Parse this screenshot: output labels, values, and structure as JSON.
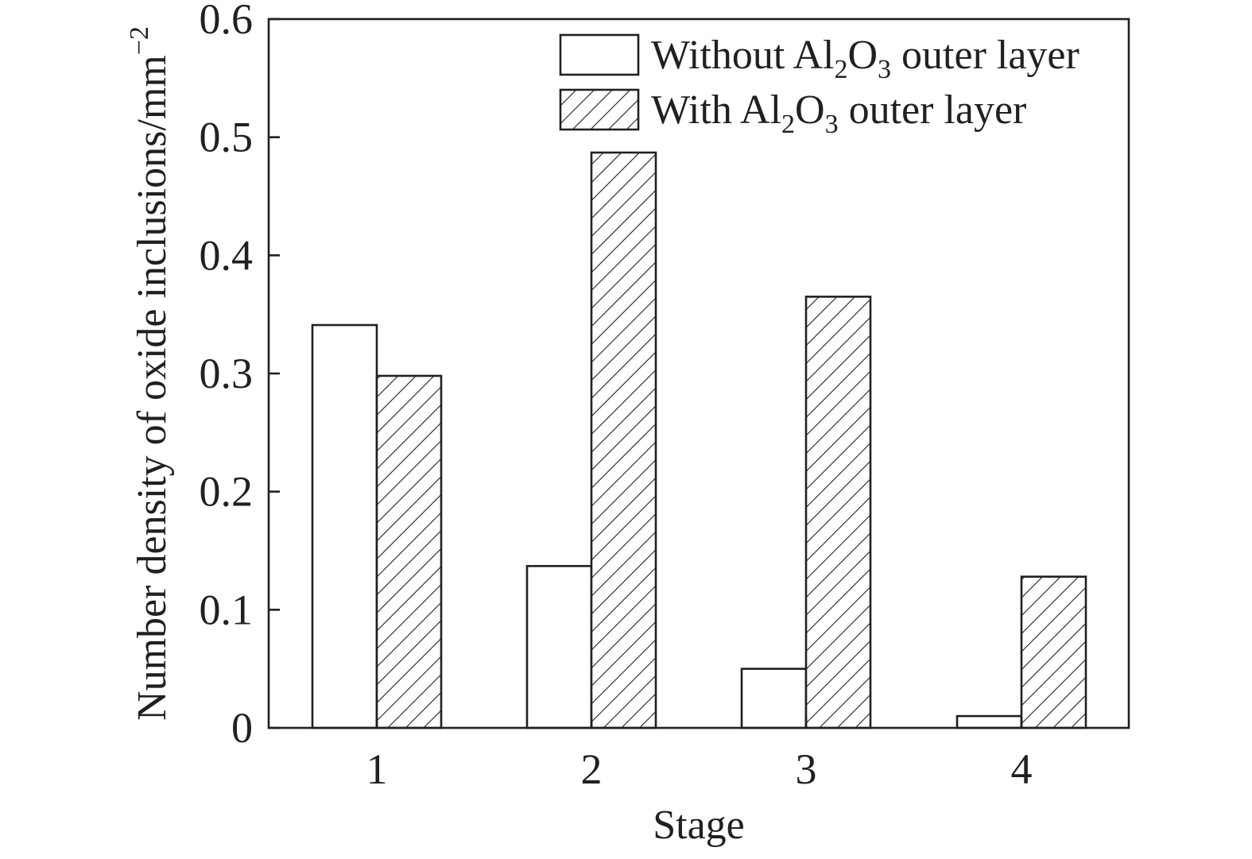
{
  "chart_data": {
    "type": "bar",
    "categories": [
      "1",
      "2",
      "3",
      "4"
    ],
    "series": [
      {
        "name": "Without Al2O3 outer layer",
        "legend_parts": {
          "pre": "Without Al",
          "sub1": "2",
          "mid": "O",
          "sub2": "3",
          "post": " outer layer"
        },
        "values": [
          0.341,
          0.137,
          0.05,
          0.01
        ],
        "fill": "none"
      },
      {
        "name": "With Al2O3 outer layer",
        "legend_parts": {
          "pre": "With Al",
          "sub1": "2",
          "mid": "O",
          "sub2": "3",
          "post": " outer layer"
        },
        "values": [
          0.298,
          0.487,
          0.365,
          0.128
        ],
        "fill": "hatched"
      }
    ],
    "xlabel": "Stage",
    "ylabel": "Number density of oxide inclusions/mm",
    "ylabel_superscript": "−2",
    "ylim": [
      0,
      0.6
    ],
    "yticks": [
      "0",
      "0.1",
      "0.2",
      "0.3",
      "0.4",
      "0.5",
      "0.6"
    ],
    "legend_position": "top-right",
    "grid": false
  },
  "colors": {
    "stroke": "#231f20",
    "background": "#ffffff"
  }
}
